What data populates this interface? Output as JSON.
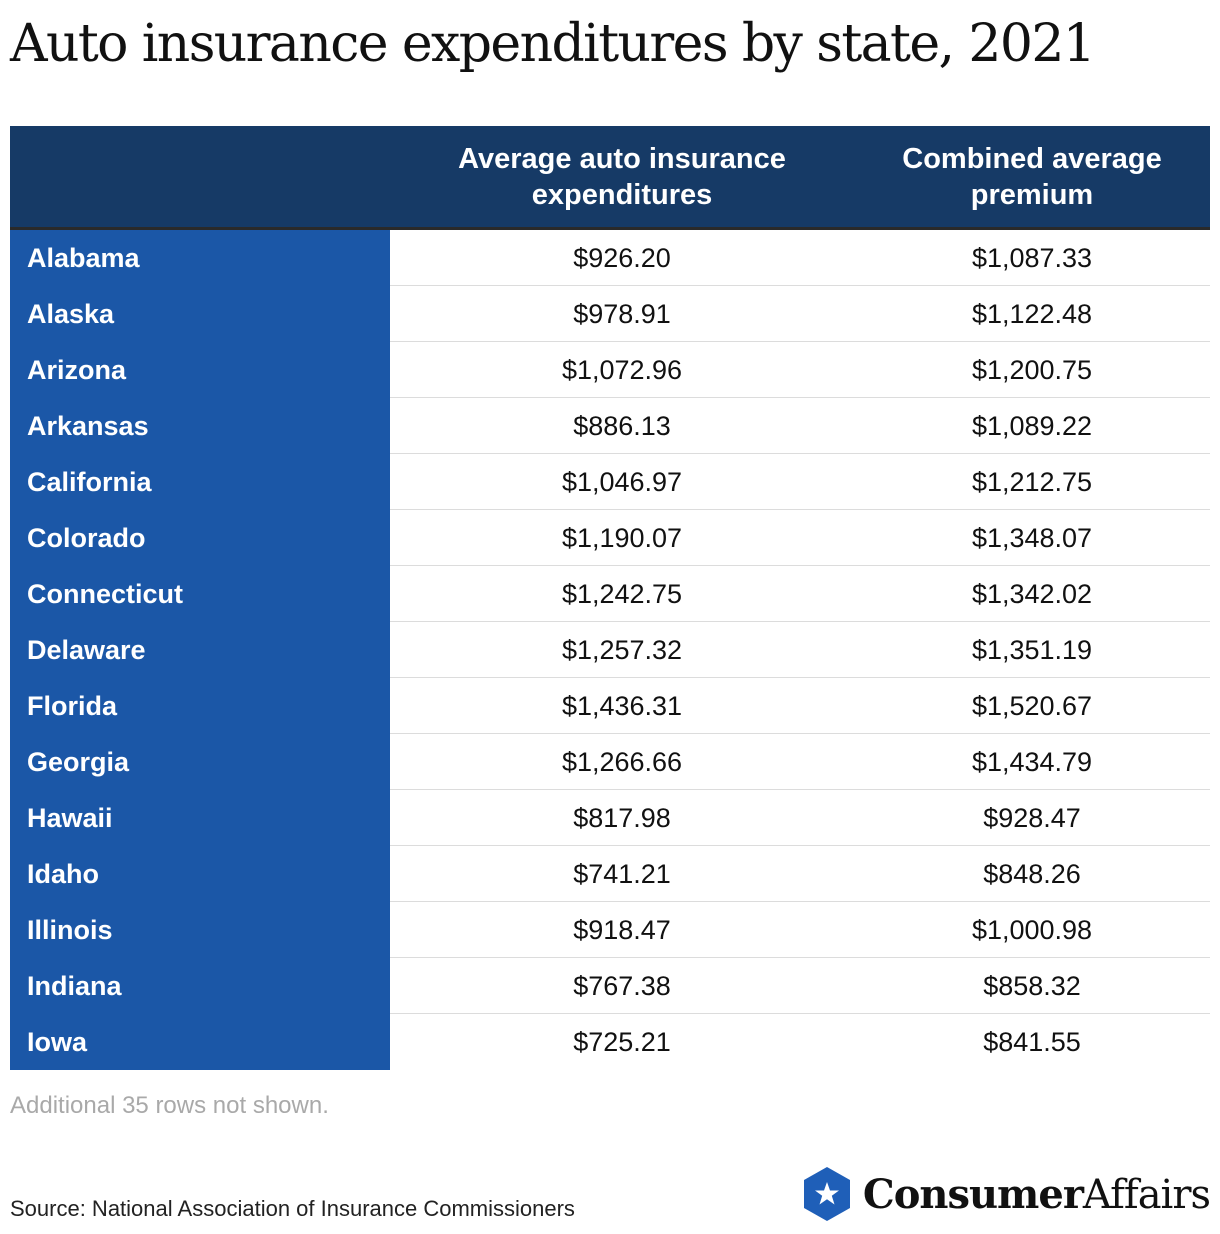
{
  "title": "Auto insurance expenditures by state, 2021",
  "chart_data": {
    "type": "table",
    "columns": [
      "",
      "Average auto insurance expenditures",
      "Combined average premium"
    ],
    "rows": [
      {
        "state": "Alabama",
        "avg_expenditure": "$926.20",
        "combined_premium": "$1,087.33"
      },
      {
        "state": "Alaska",
        "avg_expenditure": "$978.91",
        "combined_premium": "$1,122.48"
      },
      {
        "state": "Arizona",
        "avg_expenditure": "$1,072.96",
        "combined_premium": "$1,200.75"
      },
      {
        "state": "Arkansas",
        "avg_expenditure": "$886.13",
        "combined_premium": "$1,089.22"
      },
      {
        "state": "California",
        "avg_expenditure": "$1,046.97",
        "combined_premium": "$1,212.75"
      },
      {
        "state": "Colorado",
        "avg_expenditure": "$1,190.07",
        "combined_premium": "$1,348.07"
      },
      {
        "state": "Connecticut",
        "avg_expenditure": "$1,242.75",
        "combined_premium": "$1,342.02"
      },
      {
        "state": "Delaware",
        "avg_expenditure": "$1,257.32",
        "combined_premium": "$1,351.19"
      },
      {
        "state": "Florida",
        "avg_expenditure": "$1,436.31",
        "combined_premium": "$1,520.67"
      },
      {
        "state": "Georgia",
        "avg_expenditure": "$1,266.66",
        "combined_premium": "$1,434.79"
      },
      {
        "state": "Hawaii",
        "avg_expenditure": "$817.98",
        "combined_premium": "$928.47"
      },
      {
        "state": "Idaho",
        "avg_expenditure": "$741.21",
        "combined_premium": "$848.26"
      },
      {
        "state": "Illinois",
        "avg_expenditure": "$918.47",
        "combined_premium": "$1,000.98"
      },
      {
        "state": "Indiana",
        "avg_expenditure": "$767.38",
        "combined_premium": "$858.32"
      },
      {
        "state": "Iowa",
        "avg_expenditure": "$725.21",
        "combined_premium": "$841.55"
      }
    ]
  },
  "note": "Additional 35 rows not shown.",
  "source": "Source: National Association of Insurance Commissioners",
  "brand": {
    "part1": "Consumer",
    "part2": "Affairs",
    "icon": "star-hexagon-icon"
  },
  "colors": {
    "header_bg": "#163a66",
    "state_col_bg": "#1b57a7",
    "brand_blue": "#1f5fb8"
  }
}
